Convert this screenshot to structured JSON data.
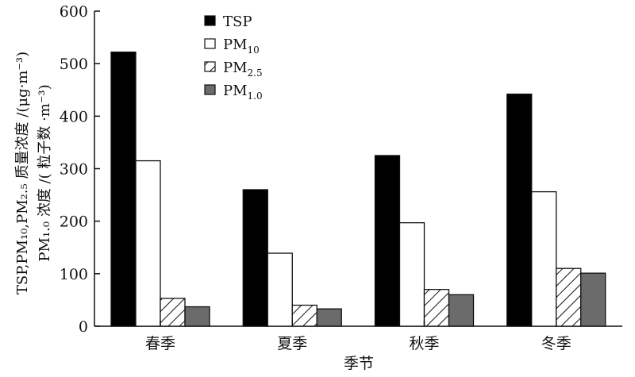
{
  "chart_data": {
    "type": "bar",
    "categories": [
      "春季",
      "夏季",
      "秋季",
      "冬季"
    ],
    "series": [
      {
        "name": "TSP",
        "name_base": "TSP",
        "name_sub": "",
        "style": "solid-black",
        "color": "#000000",
        "values": [
          522,
          260,
          325,
          442
        ]
      },
      {
        "name": "PM10",
        "name_base": "PM",
        "name_sub": "10",
        "style": "white",
        "color": "#ffffff",
        "values": [
          315,
          139,
          197,
          256
        ]
      },
      {
        "name": "PM2.5",
        "name_base": "PM",
        "name_sub": "2.5",
        "style": "hatched",
        "color": "#ffffff",
        "values": [
          53,
          40,
          70,
          110
        ]
      },
      {
        "name": "PM1.0",
        "name_base": "PM",
        "name_sub": "1.0",
        "style": "gray",
        "color": "#6b6b6b",
        "values": [
          37,
          33,
          60,
          101
        ]
      }
    ],
    "ylim": [
      0,
      600
    ],
    "yticks": [
      0,
      100,
      200,
      300,
      400,
      500,
      600
    ],
    "xlabel": "季节",
    "ylabel_line1": "TSP,PM₁₀,PM₂.₅ 质量浓度 /(μg·m⁻³)",
    "ylabel_line2": "PM₁.₀ 浓度 /( 粒子数 ·m⁻³)",
    "legend_position": "top-left",
    "grid": false
  }
}
